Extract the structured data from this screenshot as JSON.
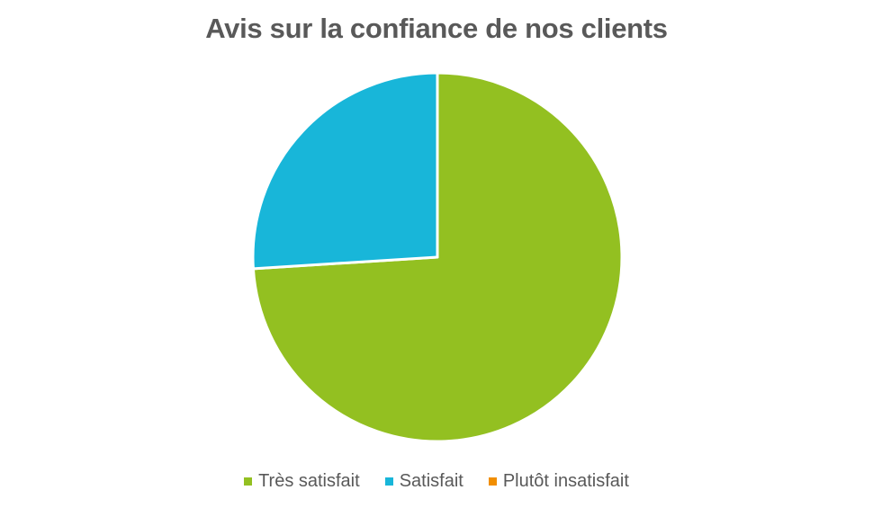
{
  "chart_data": {
    "type": "pie",
    "title": "Avis sur la confiance de nos clients",
    "categories": [
      "Très satisfait",
      "Satisfait",
      "Plutôt insatisfait"
    ],
    "values": [
      74,
      26,
      0
    ],
    "colors": [
      "#93C021",
      "#18B6D9",
      "#F18E00"
    ],
    "legend_position": "bottom"
  }
}
